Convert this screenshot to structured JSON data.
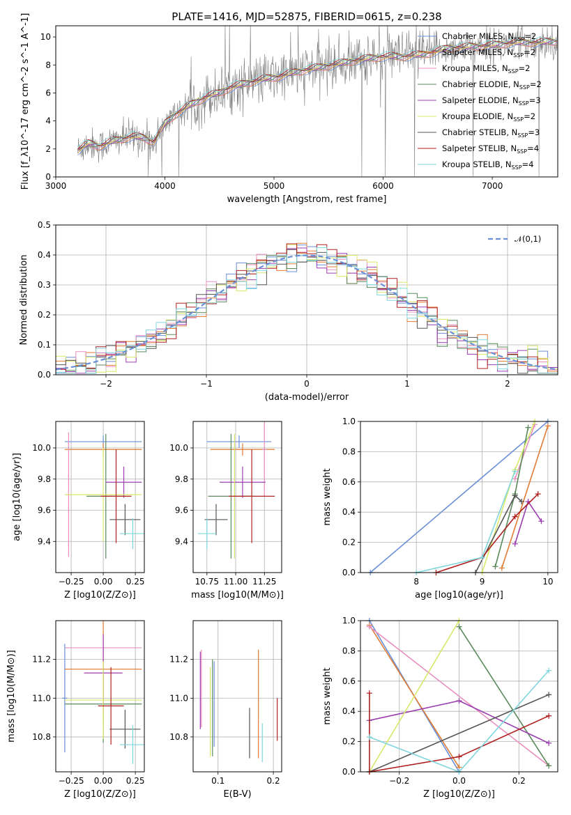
{
  "figure_title": "PLATE=1416, MJD=52875, FIBERID=0615, z=0.238",
  "colors": {
    "Chabrier MILES": "#6a8fd6",
    "Salpeter MILES": "#e07b34",
    "Kroupa MILES": "#e88fbf",
    "Chabrier ELODIE": "#5a8a5a",
    "Salpeter ELODIE": "#9b3db0",
    "Kroupa ELODIE": "#d9e868",
    "Chabrier STELIB": "#555555",
    "Salpeter STELIB": "#b02020",
    "Kroupa STELIB": "#7fd6dc",
    "data_spectrum": "#7f7f7f",
    "normal_curve": "#6a8fd6"
  },
  "chart_data": [
    {
      "id": "spectrum",
      "type": "line",
      "xlabel": "wavelength [Angstrom, rest frame]",
      "ylabel": "Flux [f_λ10^-17 erg cm^-2 s^-1 A^-1]",
      "xlim": [
        3000,
        7600
      ],
      "ylim": [
        0,
        10.8
      ],
      "xticks": [
        3000,
        4000,
        5000,
        6000,
        7000
      ],
      "yticks": [
        0,
        2,
        4,
        6,
        8,
        10
      ],
      "grid": false,
      "legend": "top-right",
      "legend_entries": [
        {
          "model": "Chabrier MILES",
          "nssp": "2"
        },
        {
          "model": "Salpeter MILES",
          "nssp": "2"
        },
        {
          "model": "Kroupa MILES",
          "nssp": "2"
        },
        {
          "model": "Chabrier ELODIE",
          "nssp": "2"
        },
        {
          "model": "Salpeter ELODIE",
          "nssp": "3"
        },
        {
          "model": "Kroupa ELODIE",
          "nssp": "2"
        },
        {
          "model": "Chabrier STELIB",
          "nssp": "3"
        },
        {
          "model": "Salpeter STELIB",
          "nssp": "4"
        },
        {
          "model": "Kroupa STELIB",
          "nssp": "4"
        }
      ],
      "model_continuum": {
        "x": [
          3200,
          3300,
          3400,
          3500,
          3600,
          3700,
          3800,
          3900,
          4000,
          4100,
          4200,
          4300,
          4400,
          4500,
          4600,
          4700,
          4800,
          4900,
          5000,
          5200,
          5400,
          5600,
          5800,
          6000,
          6200,
          6400,
          6600,
          6800,
          7000,
          7200,
          7400,
          7600
        ],
        "y": [
          1.9,
          2.4,
          2.2,
          2.5,
          2.7,
          2.9,
          2.8,
          2.5,
          3.8,
          4.5,
          5.0,
          5.4,
          5.8,
          6.0,
          6.4,
          6.6,
          6.8,
          7.0,
          7.1,
          7.5,
          7.8,
          8.1,
          8.4,
          8.6,
          8.6,
          8.8,
          9.2,
          9.3,
          9.4,
          9.6,
          9.6,
          9.7
        ]
      }
    },
    {
      "id": "residuals",
      "type": "bar",
      "xlabel": "(data-model)/error",
      "ylabel": "Normed distribution",
      "xlim": [
        -2.5,
        2.5
      ],
      "ylim": [
        0,
        0.5
      ],
      "xticks": [
        -2,
        -1,
        0,
        1,
        2
      ],
      "xtick_labels": [
        "−2",
        "−1",
        "0",
        "1",
        "2"
      ],
      "yticks": [
        0.0,
        0.1,
        0.2,
        0.3,
        0.4,
        0.5
      ],
      "grid": true,
      "legend": "top-right",
      "legend_label": "𝒩(0,1)",
      "bin_width": 0.1
    },
    {
      "id": "age_vs_Z",
      "type": "scatter",
      "xlabel": "Z [log10(Z/Z⊙)]",
      "ylabel": "age  [log10(age/yr)]",
      "xlim": [
        -0.37,
        0.32
      ],
      "ylim": [
        9.2,
        10.17
      ],
      "xticks": [
        -0.25,
        0.0,
        0.25
      ],
      "xtick_labels": [
        "−0.25",
        "0.00",
        "0.25"
      ],
      "yticks": [
        9.4,
        9.6,
        9.8,
        10.0
      ],
      "points": [
        {
          "model": "Chabrier MILES",
          "x": 0.0,
          "xerr": 0.3,
          "y": 10.04,
          "yerr": 0.04
        },
        {
          "model": "Salpeter MILES",
          "x": 0.0,
          "xerr": 0.3,
          "y": 9.99,
          "yerr": 0.04
        },
        {
          "model": "Kroupa MILES",
          "x": -0.27,
          "xerr": 0.02,
          "y": 9.7,
          "yerr": 0.4
        },
        {
          "model": "Chabrier ELODIE",
          "x": 0.02,
          "xerr": 0.15,
          "y": 9.69,
          "yerr": 0.4
        },
        {
          "model": "Salpeter ELODIE",
          "x": 0.16,
          "xerr": 0.14,
          "y": 9.78,
          "yerr": 0.1
        },
        {
          "model": "Kroupa ELODIE",
          "x": 0.0,
          "xerr": 0.3,
          "y": 9.7,
          "yerr": 0.3
        },
        {
          "model": "Chabrier STELIB",
          "x": 0.17,
          "xerr": 0.12,
          "y": 9.54,
          "yerr": 0.1
        },
        {
          "model": "Salpeter STELIB",
          "x": 0.1,
          "xerr": 0.12,
          "y": 9.69,
          "yerr": 0.3
        },
        {
          "model": "Kroupa STELIB",
          "x": 0.23,
          "xerr": 0.1,
          "y": 9.45,
          "yerr": 0.1
        }
      ]
    },
    {
      "id": "age_vs_mass",
      "type": "scatter",
      "xlabel": "mass [log10(M/M⊙)]",
      "xlim": [
        10.63,
        11.4
      ],
      "ylim": [
        9.2,
        10.17
      ],
      "xticks": [
        10.75,
        11.0,
        11.25
      ],
      "xtick_labels": [
        "10.75",
        "11.00",
        "11.25"
      ],
      "yticks": [
        9.4,
        9.6,
        9.8,
        10.0
      ],
      "points": [
        {
          "model": "Chabrier MILES",
          "x": 11.03,
          "xerr": 0.28,
          "y": 10.04,
          "yerr": 0.04
        },
        {
          "model": "Salpeter MILES",
          "x": 11.06,
          "xerr": 0.28,
          "y": 9.99,
          "yerr": 0.04
        },
        {
          "model": "Kroupa MILES",
          "x": 11.25,
          "xerr": 0.02,
          "y": 9.99,
          "yerr": 0.3
        },
        {
          "model": "Chabrier ELODIE",
          "x": 10.96,
          "xerr": 0.2,
          "y": 9.69,
          "yerr": 0.4
        },
        {
          "model": "Salpeter ELODIE",
          "x": 11.06,
          "xerr": 0.2,
          "y": 9.78,
          "yerr": 0.1
        },
        {
          "model": "Kroupa ELODIE",
          "x": 10.99,
          "xerr": 0.03,
          "y": 9.69,
          "yerr": 0.4
        },
        {
          "model": "Chabrier STELIB",
          "x": 10.83,
          "xerr": 0.1,
          "y": 9.54,
          "yerr": 0.1
        },
        {
          "model": "Salpeter STELIB",
          "x": 11.14,
          "xerr": 0.2,
          "y": 9.69,
          "yerr": 0.3
        },
        {
          "model": "Kroupa STELIB",
          "x": 10.75,
          "xerr": 0.08,
          "y": 9.45,
          "yerr": 0.1
        }
      ]
    },
    {
      "id": "massweight_vs_age",
      "type": "line",
      "xlabel": "age  [log10(age/yr)]",
      "ylabel": "mass weight",
      "xlim": [
        7.15,
        10.15
      ],
      "ylim": [
        0,
        1.0
      ],
      "xticks": [
        8,
        9,
        10
      ],
      "yticks": [
        0.0,
        0.2,
        0.4,
        0.6,
        0.8,
        1.0
      ],
      "series": [
        {
          "model": "Chabrier MILES",
          "x": [
            7.3,
            10.0
          ],
          "y": [
            0.0,
            1.0
          ]
        },
        {
          "model": "Salpeter MILES",
          "x": [
            9.3,
            10.0
          ],
          "y": [
            0.03,
            0.97
          ]
        },
        {
          "model": "Kroupa MILES",
          "x": [
            9.5,
            9.8
          ],
          "y": [
            0.62,
            0.98
          ]
        },
        {
          "model": "Chabrier ELODIE",
          "x": [
            9.2,
            9.5,
            9.7
          ],
          "y": [
            0.04,
            0.52,
            0.96
          ]
        },
        {
          "model": "Salpeter ELODIE",
          "x": [
            9.5,
            9.7,
            9.9
          ],
          "y": [
            0.19,
            0.47,
            0.34
          ]
        },
        {
          "model": "Kroupa ELODIE",
          "x": [
            9.0,
            9.5,
            9.8
          ],
          "y": [
            0.0,
            0.68,
            1.0
          ]
        },
        {
          "model": "Chabrier STELIB",
          "x": [
            8.9,
            9.5,
            9.6
          ],
          "y": [
            0.0,
            0.51,
            0.47
          ]
        },
        {
          "model": "Salpeter STELIB",
          "x": [
            8.3,
            9.0,
            9.5,
            9.85
          ],
          "y": [
            0.0,
            0.1,
            0.37,
            0.52
          ]
        },
        {
          "model": "Kroupa STELIB",
          "x": [
            8.0,
            9.0,
            9.5
          ],
          "y": [
            0.0,
            0.1,
            0.67
          ]
        }
      ]
    },
    {
      "id": "mass_vs_Z",
      "type": "scatter",
      "xlabel": "Z [log10(Z/Z⊙)]",
      "ylabel": "mass [log10(M/M⊙)]",
      "xlim": [
        -0.37,
        0.32
      ],
      "ylim": [
        10.62,
        11.4
      ],
      "xticks": [
        -0.25,
        0.0,
        0.25
      ],
      "xtick_labels": [
        "−0.25",
        "0.00",
        "0.25"
      ],
      "yticks": [
        10.8,
        11.0,
        11.2
      ],
      "points": [
        {
          "model": "Chabrier MILES",
          "x": -0.3,
          "xerr": 0.02,
          "y": 11.0,
          "yerr": 0.28
        },
        {
          "model": "Salpeter MILES",
          "x": 0.0,
          "xerr": 0.3,
          "y": 11.15,
          "yerr": 0.28
        },
        {
          "model": "Kroupa MILES",
          "x": 0.0,
          "xerr": 0.3,
          "y": 11.26,
          "yerr": 0.02
        },
        {
          "model": "Chabrier ELODIE",
          "x": 0.0,
          "xerr": 0.3,
          "y": 10.97,
          "yerr": 0.2
        },
        {
          "model": "Salpeter ELODIE",
          "x": 0.0,
          "xerr": 0.15,
          "y": 11.13,
          "yerr": 0.2
        },
        {
          "model": "Kroupa ELODIE",
          "x": 0.0,
          "xerr": 0.3,
          "y": 10.99,
          "yerr": 0.2
        },
        {
          "model": "Chabrier STELIB",
          "x": 0.17,
          "xerr": 0.12,
          "y": 10.84,
          "yerr": 0.1
        },
        {
          "model": "Salpeter STELIB",
          "x": 0.06,
          "xerr": 0.1,
          "y": 10.96,
          "yerr": 0.2
        },
        {
          "model": "Kroupa STELIB",
          "x": 0.23,
          "xerr": 0.1,
          "y": 10.76,
          "yerr": 0.1
        }
      ]
    },
    {
      "id": "mass_vs_ebv",
      "type": "scatter",
      "xlabel": "E(B-V)",
      "xlim": [
        0.055,
        0.215
      ],
      "ylim": [
        10.62,
        11.4
      ],
      "xticks": [
        0.1,
        0.2
      ],
      "yticks": [
        10.8,
        11.0,
        11.2
      ],
      "points": [
        {
          "model": "Chabrier MILES",
          "x": 0.093,
          "y": 10.97,
          "yerr": 0.22
        },
        {
          "model": "Salpeter MILES",
          "x": 0.173,
          "y": 10.97,
          "yerr": 0.28
        },
        {
          "model": "Kroupa MILES",
          "x": 0.07,
          "y": 11.05,
          "yerr": 0.2
        },
        {
          "model": "Chabrier ELODIE",
          "x": 0.09,
          "y": 10.95,
          "yerr": 0.25
        },
        {
          "model": "Salpeter ELODIE",
          "x": 0.068,
          "y": 11.04,
          "yerr": 0.2
        },
        {
          "model": "Kroupa ELODIE",
          "x": 0.086,
          "y": 10.93,
          "yerr": 0.23
        },
        {
          "model": "Chabrier STELIB",
          "x": 0.157,
          "y": 10.82,
          "yerr": 0.13
        },
        {
          "model": "Salpeter STELIB",
          "x": 0.207,
          "y": 10.89,
          "yerr": 0.11
        },
        {
          "model": "Kroupa STELIB",
          "x": 0.18,
          "y": 10.77,
          "yerr": 0.1
        }
      ]
    },
    {
      "id": "massweight_vs_Z",
      "type": "line",
      "xlabel": "Z [log10(Z/Z⊙)]",
      "ylabel": "mass weight",
      "xlim": [
        -0.33,
        0.33
      ],
      "ylim": [
        0,
        1.0
      ],
      "xticks": [
        -0.2,
        0.0,
        0.2
      ],
      "xtick_labels": [
        "−0.2",
        "0.0",
        "0.2"
      ],
      "yticks": [
        0.0,
        0.2,
        0.4,
        0.6,
        0.8,
        1.0
      ],
      "series": [
        {
          "model": "Chabrier MILES",
          "x": [
            -0.3,
            0.0
          ],
          "y": [
            1.0,
            0.0
          ]
        },
        {
          "model": "Salpeter MILES",
          "x": [
            -0.3,
            0.0
          ],
          "y": [
            0.97,
            0.03
          ]
        },
        {
          "model": "Kroupa MILES",
          "x": [
            -0.3,
            0.3
          ],
          "y": [
            0.96,
            0.04
          ]
        },
        {
          "model": "Chabrier ELODIE",
          "x": [
            0.0,
            0.3
          ],
          "y": [
            0.96,
            0.04
          ]
        },
        {
          "model": "Salpeter ELODIE",
          "x": [
            -0.3,
            0.0,
            0.3
          ],
          "y": [
            0.34,
            0.47,
            0.19
          ]
        },
        {
          "model": "Kroupa ELODIE",
          "x": [
            -0.3,
            0.0
          ],
          "y": [
            0.0,
            1.0
          ]
        },
        {
          "model": "Chabrier STELIB",
          "x": [
            -0.3,
            0.3
          ],
          "y": [
            0.0,
            0.51
          ]
        },
        {
          "model": "Salpeter STELIB",
          "x": [
            -0.3,
            -0.3,
            0.0,
            0.3
          ],
          "y": [
            0.52,
            0.0,
            0.1,
            0.37
          ]
        },
        {
          "model": "Kroupa STELIB",
          "x": [
            -0.3,
            0.0,
            0.3
          ],
          "y": [
            0.23,
            0.0,
            0.67
          ]
        }
      ]
    }
  ]
}
